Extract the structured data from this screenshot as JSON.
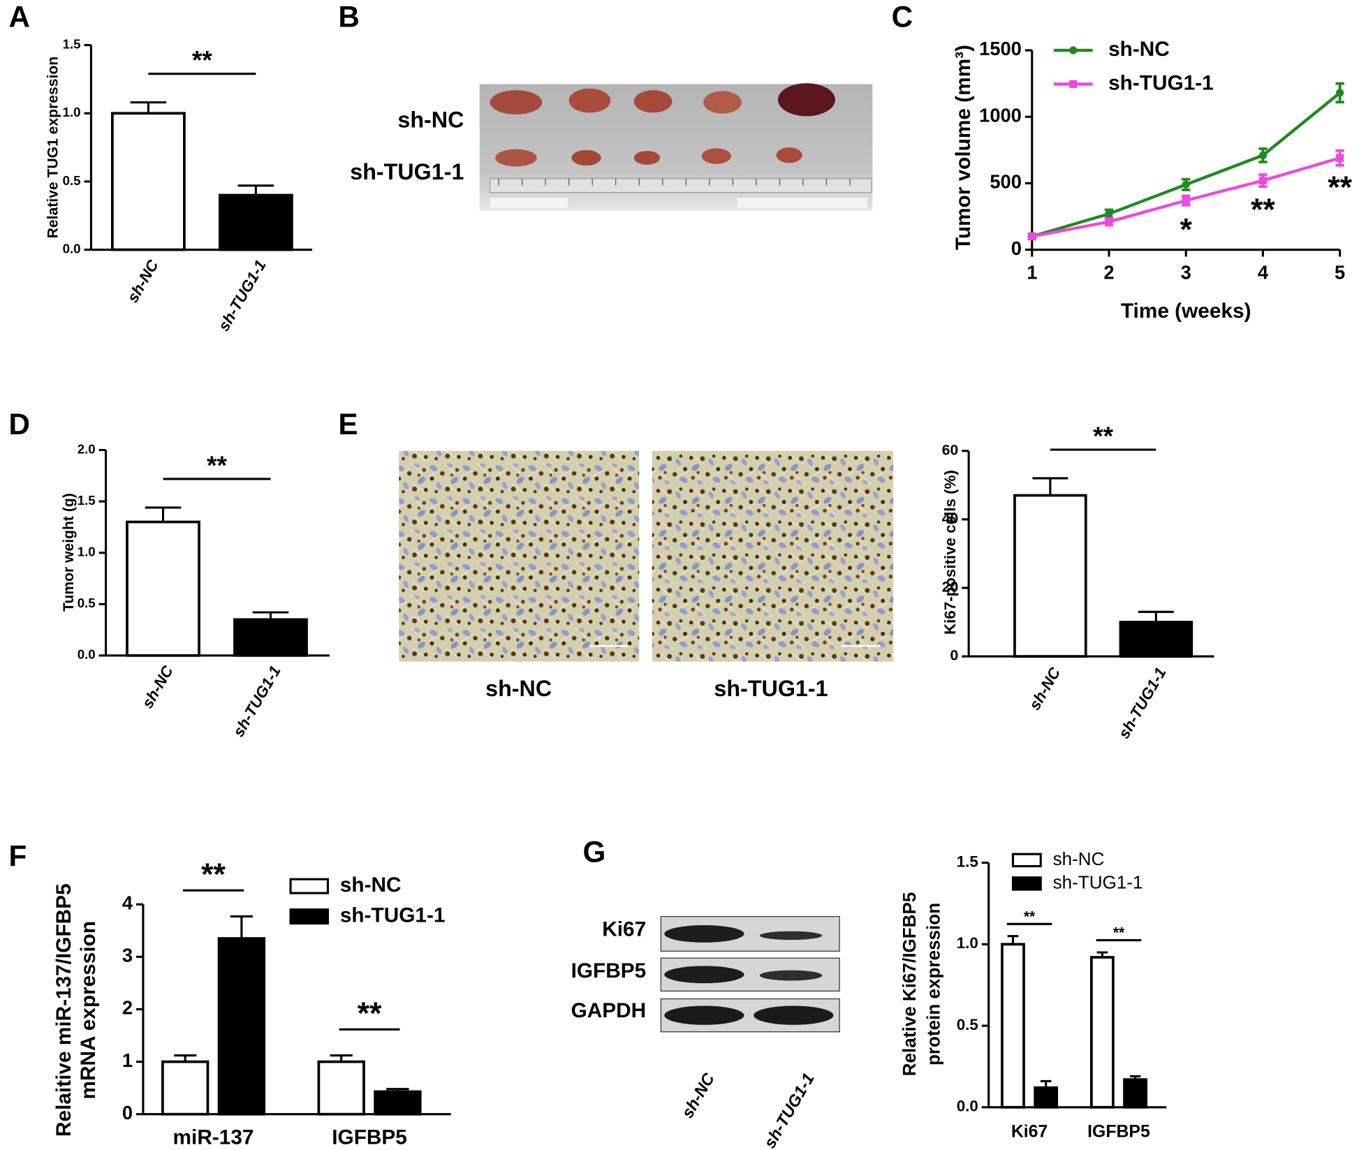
{
  "chart_data": [
    {
      "panel": "A",
      "type": "bar",
      "ylabel": "Relative TUG1 expression",
      "categories": [
        "sh-NC",
        "sh-TUG1-1"
      ],
      "values": [
        1.0,
        0.4
      ],
      "errors": [
        0.08,
        0.07
      ],
      "colors": [
        "#ffffff",
        "#000000"
      ],
      "ylim": [
        0,
        1.5
      ],
      "yticks": [
        {
          "value": 0,
          "label": "0.0"
        },
        0.5,
        {
          "value": 1,
          "label": "1.0"
        },
        1.5
      ],
      "significance": "**"
    },
    {
      "panel": "C",
      "type": "line",
      "xlabel": "Time (weeks)",
      "ylabel": "Tumor volume (mm³)",
      "x": [
        1,
        2,
        3,
        4,
        5
      ],
      "xlim": [
        1,
        5
      ],
      "xticks": [
        1,
        2,
        3,
        4,
        5
      ],
      "ylim": [
        0,
        1500
      ],
      "yticks": [
        0,
        500,
        1000,
        1500
      ],
      "series": [
        {
          "name": "sh-NC",
          "color": "#1f8a1f",
          "marker": "circle",
          "values": [
            100,
            270,
            490,
            710,
            1180
          ],
          "errors": [
            20,
            30,
            40,
            50,
            70
          ]
        },
        {
          "name": "sh-TUG1-1",
          "color": "#ee48dd",
          "marker": "square",
          "values": [
            100,
            210,
            370,
            520,
            690
          ],
          "errors": [
            15,
            25,
            35,
            45,
            55
          ]
        }
      ],
      "significance": [
        null,
        null,
        "*",
        "**",
        "**"
      ]
    },
    {
      "panel": "D",
      "type": "bar",
      "ylabel": "Tumor weight (g)",
      "categories": [
        "sh-NC",
        "sh-TUG1-1"
      ],
      "values": [
        1.3,
        0.35
      ],
      "errors": [
        0.14,
        0.07
      ],
      "colors": [
        "#ffffff",
        "#000000"
      ],
      "ylim": [
        0,
        2
      ],
      "yticks": [
        {
          "value": 0,
          "label": "0.0"
        },
        0.5,
        {
          "value": 1,
          "label": "1.0"
        },
        1.5,
        {
          "value": 2,
          "label": "2.0"
        }
      ],
      "significance": "**"
    },
    {
      "type": "bar",
      "ylabel": "Ki67-positive cells (%)",
      "categories": [
        "sh-NC",
        "sh-TUG1-1"
      ],
      "values": [
        47,
        10
      ],
      "errors": [
        5,
        3
      ],
      "colors": [
        "#ffffff",
        "#000000"
      ],
      "ylim": [
        0,
        60
      ],
      "yticks": [
        0,
        20,
        40,
        60
      ],
      "significance": "**"
    },
    {
      "panel": "F",
      "type": "bar",
      "ylabel": [
        "Relaitive miR-137/IGFBP5",
        "mRNA expression"
      ],
      "categories": [
        "miR-137",
        "IGFBP5"
      ],
      "ylim": [
        0,
        4
      ],
      "yticks": [
        0,
        1,
        2,
        3,
        4
      ],
      "series": [
        {
          "name": "sh-NC",
          "color": "#ffffff",
          "values": [
            1.0,
            1.0
          ],
          "errors": [
            0.12,
            0.12
          ]
        },
        {
          "name": "sh-TUG1-1",
          "color": "#000000",
          "values": [
            3.35,
            0.43
          ],
          "errors": [
            0.42,
            0.05
          ]
        }
      ],
      "significance": [
        "**",
        "**"
      ]
    },
    {
      "type": "bar",
      "ylabel": [
        "Relative Ki67/IGFBP5",
        "protein expression"
      ],
      "categories": [
        "Ki67",
        "IGFBP5"
      ],
      "ylim": [
        0,
        1.5
      ],
      "yticks": [
        {
          "value": 0,
          "label": "0.0"
        },
        0.5,
        {
          "value": 1,
          "label": "1.0"
        },
        1.5
      ],
      "series": [
        {
          "name": "sh-NC",
          "color": "#ffffff",
          "values": [
            1.0,
            0.92
          ],
          "errors": [
            0.05,
            0.03
          ]
        },
        {
          "name": "sh-TUG1-1",
          "color": "#000000",
          "values": [
            0.12,
            0.17
          ],
          "errors": [
            0.04,
            0.02
          ]
        }
      ],
      "significance": [
        "**",
        "**"
      ]
    }
  ],
  "images": [
    {
      "panel": "B",
      "row_labels": [
        "sh-NC",
        "sh-TUG1-1"
      ]
    },
    {
      "panel": "E",
      "labels": [
        "sh-NC",
        "sh-TUG1-1"
      ]
    },
    {
      "panel": "G",
      "row_labels": [
        "Ki67",
        "IGFBP5",
        "GAPDH"
      ],
      "lane_labels": [
        "sh-NC",
        "sh-TUG1-1"
      ]
    }
  ]
}
